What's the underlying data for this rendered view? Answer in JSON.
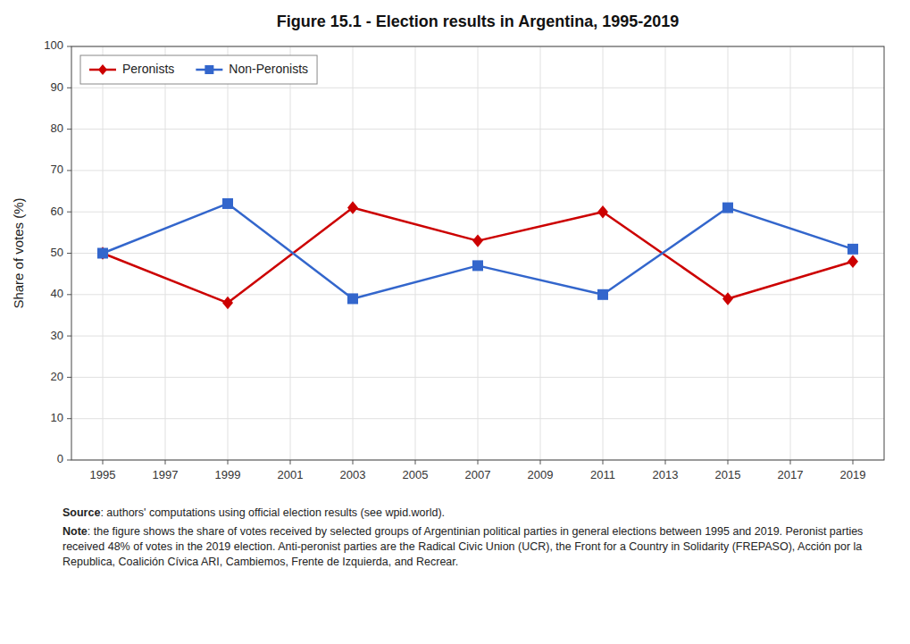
{
  "chart_data": {
    "type": "line",
    "title": "Figure 15.1 - Election results in Argentina, 1995-2019",
    "y_label": "Share of votes (%)",
    "x": [
      1995,
      1999,
      2003,
      2007,
      2011,
      2015,
      2019
    ],
    "series": [
      {
        "name": "Peronists",
        "color": "#cc0000",
        "marker": "diamond",
        "values": [
          50,
          38,
          61,
          53,
          60,
          39,
          48
        ]
      },
      {
        "name": "Non-Peronists",
        "color": "#3366cc",
        "marker": "square",
        "values": [
          50,
          62,
          39,
          47,
          40,
          61,
          51
        ]
      }
    ],
    "xlim": [
      1994,
      2020
    ],
    "xticks": [
      1995,
      1997,
      1999,
      2001,
      2003,
      2005,
      2007,
      2009,
      2011,
      2013,
      2015,
      2017,
      2019
    ],
    "ylim": [
      0,
      100
    ],
    "yticks": [
      0,
      10,
      20,
      30,
      40,
      50,
      60,
      70,
      80,
      90,
      100
    ],
    "grid": true,
    "legend": "upper left",
    "footnotes": [
      {
        "label": "Source",
        "text": ": authors' computations using official election results (see wpid.world)."
      },
      {
        "label": "Note",
        "text": ": the figure shows the share of votes received by selected groups of Argentinian political parties in general elections between 1995 and 2019. Peronist parties received 48% of votes in the 2019 election. Anti-peronist parties are the Radical Civic Union (UCR), the Front for a Country in Solidarity (FREPASO), Acción por la Republica, Coalición Cívica ARI, Cambiemos, Frente de Izquierda, and Recrear."
      }
    ]
  }
}
